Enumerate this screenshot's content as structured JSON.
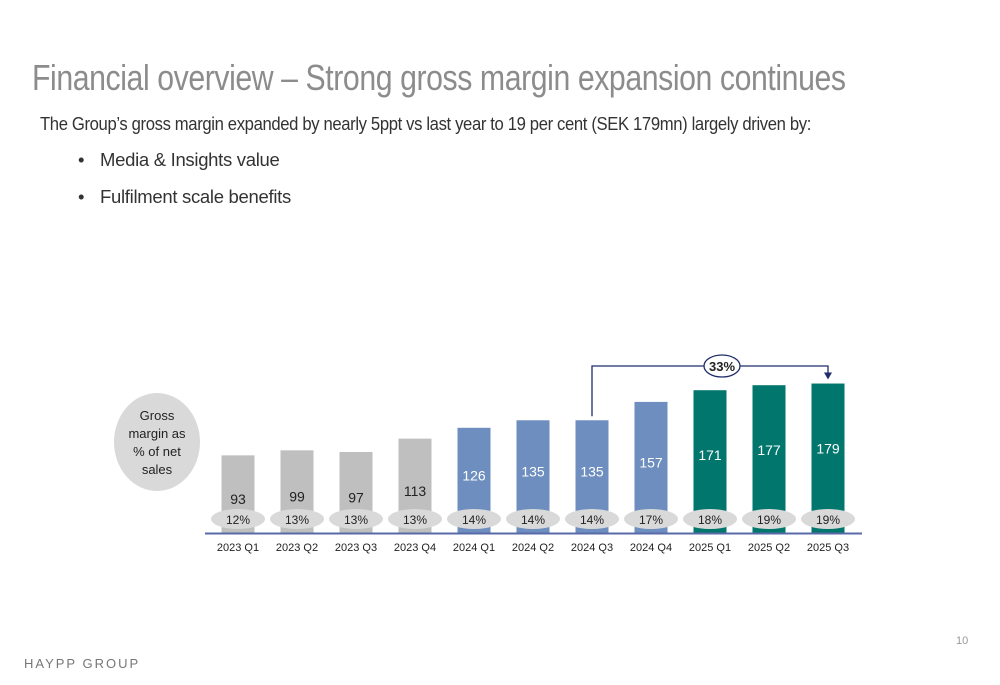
{
  "header": {
    "title": "Financial overview – Strong gross margin expansion continues",
    "subtitle": "The Group’s gross margin expanded by nearly 5ppt vs last year to 19 per cent (SEK 179mn) largely driven by:",
    "bullets": [
      "Media & Insights value",
      "Fulfilment scale benefits"
    ]
  },
  "footer": {
    "brand": "HAYPP GROUP",
    "page": "10"
  },
  "chart_data": {
    "type": "bar",
    "categories": [
      "2023 Q1",
      "2023 Q2",
      "2023 Q3",
      "2023 Q4",
      "2024 Q1",
      "2024 Q2",
      "2024 Q3",
      "2024 Q4",
      "2025 Q1",
      "2025 Q2",
      "2025 Q3"
    ],
    "values": [
      93,
      99,
      97,
      113,
      126,
      135,
      135,
      157,
      171,
      177,
      179
    ],
    "margins": [
      "12%",
      "13%",
      "13%",
      "13%",
      "14%",
      "14%",
      "14%",
      "17%",
      "18%",
      "19%",
      "19%"
    ],
    "bar_colors": [
      "#bfbfbf",
      "#bfbfbf",
      "#bfbfbf",
      "#bfbfbf",
      "#6d8ebf",
      "#6d8ebf",
      "#6d8ebf",
      "#6d8ebf",
      "#00766c",
      "#00766c",
      "#00766c"
    ],
    "label_colors": [
      "#222222",
      "#222222",
      "#222222",
      "#222222",
      "#ffffff",
      "#ffffff",
      "#ffffff",
      "#ffffff",
      "#ffffff",
      "#ffffff",
      "#ffffff"
    ],
    "margin_legend": "Gross margin as % of net sales",
    "annotation": {
      "text": "33%",
      "from": "2024 Q3",
      "to": "2025 Q3"
    },
    "axis_color": "#5a6aa8"
  }
}
